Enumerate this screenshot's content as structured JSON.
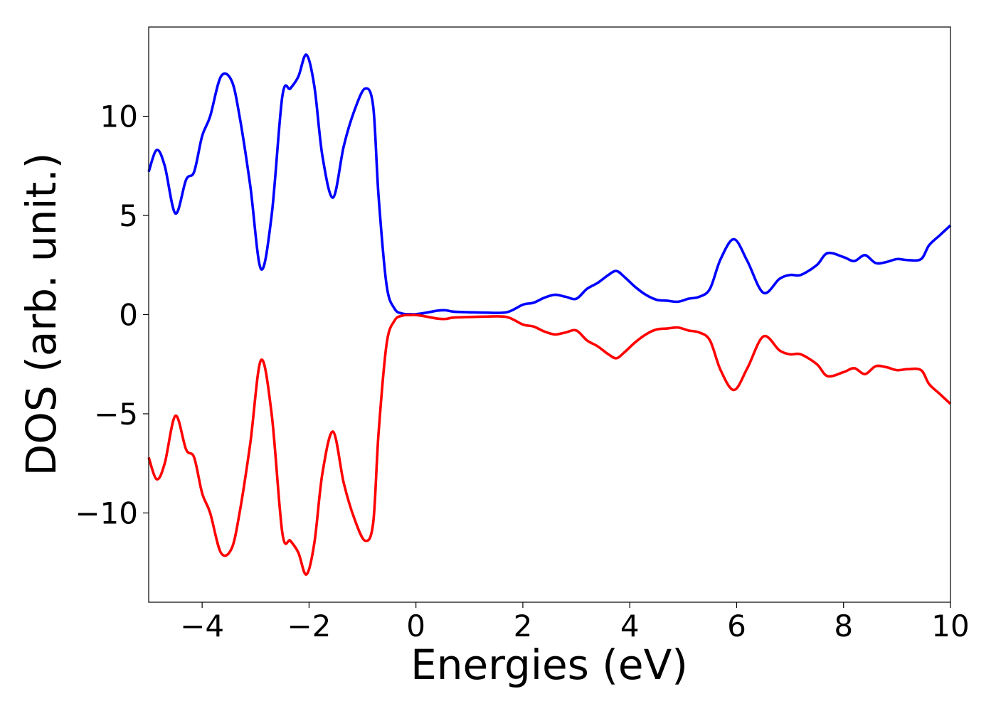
{
  "chart_data": {
    "type": "line",
    "title": "",
    "xlabel": "Energies (eV)",
    "ylabel": "DOS (arb. unit.)",
    "xlim": [
      -5,
      10
    ],
    "ylim": [
      -14.5,
      14.5
    ],
    "xticks": [
      -4,
      -2,
      0,
      2,
      4,
      6,
      8,
      10
    ],
    "xtick_labels": [
      "−4",
      "−2",
      "0",
      "2",
      "4",
      "6",
      "8",
      "10"
    ],
    "yticks": [
      -10,
      -5,
      0,
      5,
      10
    ],
    "ytick_labels": [
      "−10",
      "−5",
      "0",
      "5",
      "10"
    ],
    "grid": false,
    "legend": "none",
    "series": [
      {
        "color": "#0000ff",
        "x": [
          -5.0,
          -4.85,
          -4.7,
          -4.5,
          -4.3,
          -4.15,
          -4.0,
          -3.85,
          -3.65,
          -3.45,
          -3.3,
          -3.1,
          -2.9,
          -2.7,
          -2.5,
          -2.35,
          -2.2,
          -2.05,
          -1.9,
          -1.75,
          -1.55,
          -1.35,
          -1.15,
          -0.95,
          -0.8,
          -0.7,
          -0.55,
          -0.4,
          -0.25,
          -0.1,
          0.0,
          0.2,
          0.4,
          0.55,
          0.7,
          1.0,
          1.3,
          1.7,
          2.0,
          2.2,
          2.4,
          2.6,
          2.8,
          3.0,
          3.2,
          3.4,
          3.6,
          3.75,
          3.9,
          4.1,
          4.3,
          4.5,
          4.7,
          4.9,
          5.1,
          5.3,
          5.5,
          5.7,
          5.95,
          6.2,
          6.5,
          6.8,
          7.0,
          7.2,
          7.5,
          7.7,
          8.0,
          8.2,
          8.4,
          8.6,
          8.8,
          9.0,
          9.2,
          9.45,
          9.6,
          9.8,
          10.0
        ],
        "y": [
          7.2,
          8.3,
          7.5,
          5.1,
          6.8,
          7.2,
          9.0,
          10.0,
          12.0,
          11.8,
          10.0,
          6.5,
          2.3,
          5.0,
          11.0,
          11.4,
          12.0,
          13.1,
          11.5,
          8.0,
          5.9,
          8.5,
          10.3,
          11.4,
          10.5,
          6.0,
          1.5,
          0.3,
          0.05,
          0.02,
          0.02,
          0.1,
          0.2,
          0.22,
          0.15,
          0.12,
          0.1,
          0.12,
          0.5,
          0.6,
          0.85,
          1.0,
          0.9,
          0.8,
          1.3,
          1.6,
          2.0,
          2.2,
          1.9,
          1.4,
          1.0,
          0.75,
          0.7,
          0.65,
          0.8,
          0.9,
          1.3,
          2.8,
          3.8,
          2.7,
          1.1,
          1.8,
          2.0,
          2.0,
          2.5,
          3.1,
          2.9,
          2.7,
          3.0,
          2.6,
          2.65,
          2.8,
          2.75,
          2.8,
          3.5,
          4.0,
          4.5
        ]
      },
      {
        "color": "#ff0000",
        "x": [
          -5.0,
          -4.85,
          -4.7,
          -4.5,
          -4.3,
          -4.15,
          -4.0,
          -3.85,
          -3.65,
          -3.45,
          -3.3,
          -3.1,
          -2.9,
          -2.7,
          -2.5,
          -2.35,
          -2.2,
          -2.05,
          -1.9,
          -1.75,
          -1.55,
          -1.35,
          -1.15,
          -0.95,
          -0.8,
          -0.7,
          -0.55,
          -0.4,
          -0.25,
          -0.1,
          0.0,
          0.2,
          0.4,
          0.55,
          0.7,
          1.0,
          1.3,
          1.7,
          2.0,
          2.2,
          2.4,
          2.6,
          2.8,
          3.0,
          3.2,
          3.4,
          3.6,
          3.75,
          3.9,
          4.1,
          4.3,
          4.5,
          4.7,
          4.9,
          5.1,
          5.3,
          5.5,
          5.7,
          5.95,
          6.2,
          6.5,
          6.8,
          7.0,
          7.2,
          7.5,
          7.7,
          8.0,
          8.2,
          8.4,
          8.6,
          8.8,
          9.0,
          9.2,
          9.45,
          9.6,
          9.8,
          10.0
        ],
        "y": [
          -7.2,
          -8.3,
          -7.5,
          -5.1,
          -6.8,
          -7.2,
          -9.0,
          -10.0,
          -12.0,
          -11.8,
          -10.0,
          -6.5,
          -2.3,
          -5.0,
          -11.0,
          -11.4,
          -12.0,
          -13.1,
          -11.5,
          -8.0,
          -5.9,
          -8.5,
          -10.3,
          -11.4,
          -10.5,
          -6.0,
          -1.5,
          -0.3,
          -0.05,
          -0.02,
          -0.02,
          -0.1,
          -0.2,
          -0.22,
          -0.15,
          -0.12,
          -0.1,
          -0.12,
          -0.5,
          -0.6,
          -0.85,
          -1.0,
          -0.9,
          -0.8,
          -1.3,
          -1.6,
          -2.0,
          -2.2,
          -1.9,
          -1.4,
          -1.0,
          -0.75,
          -0.7,
          -0.65,
          -0.8,
          -0.9,
          -1.3,
          -2.8,
          -3.8,
          -2.7,
          -1.1,
          -1.8,
          -2.0,
          -2.0,
          -2.5,
          -3.1,
          -2.9,
          -2.7,
          -3.0,
          -2.6,
          -2.65,
          -2.8,
          -2.75,
          -2.8,
          -3.5,
          -4.0,
          -4.5
        ]
      }
    ]
  }
}
